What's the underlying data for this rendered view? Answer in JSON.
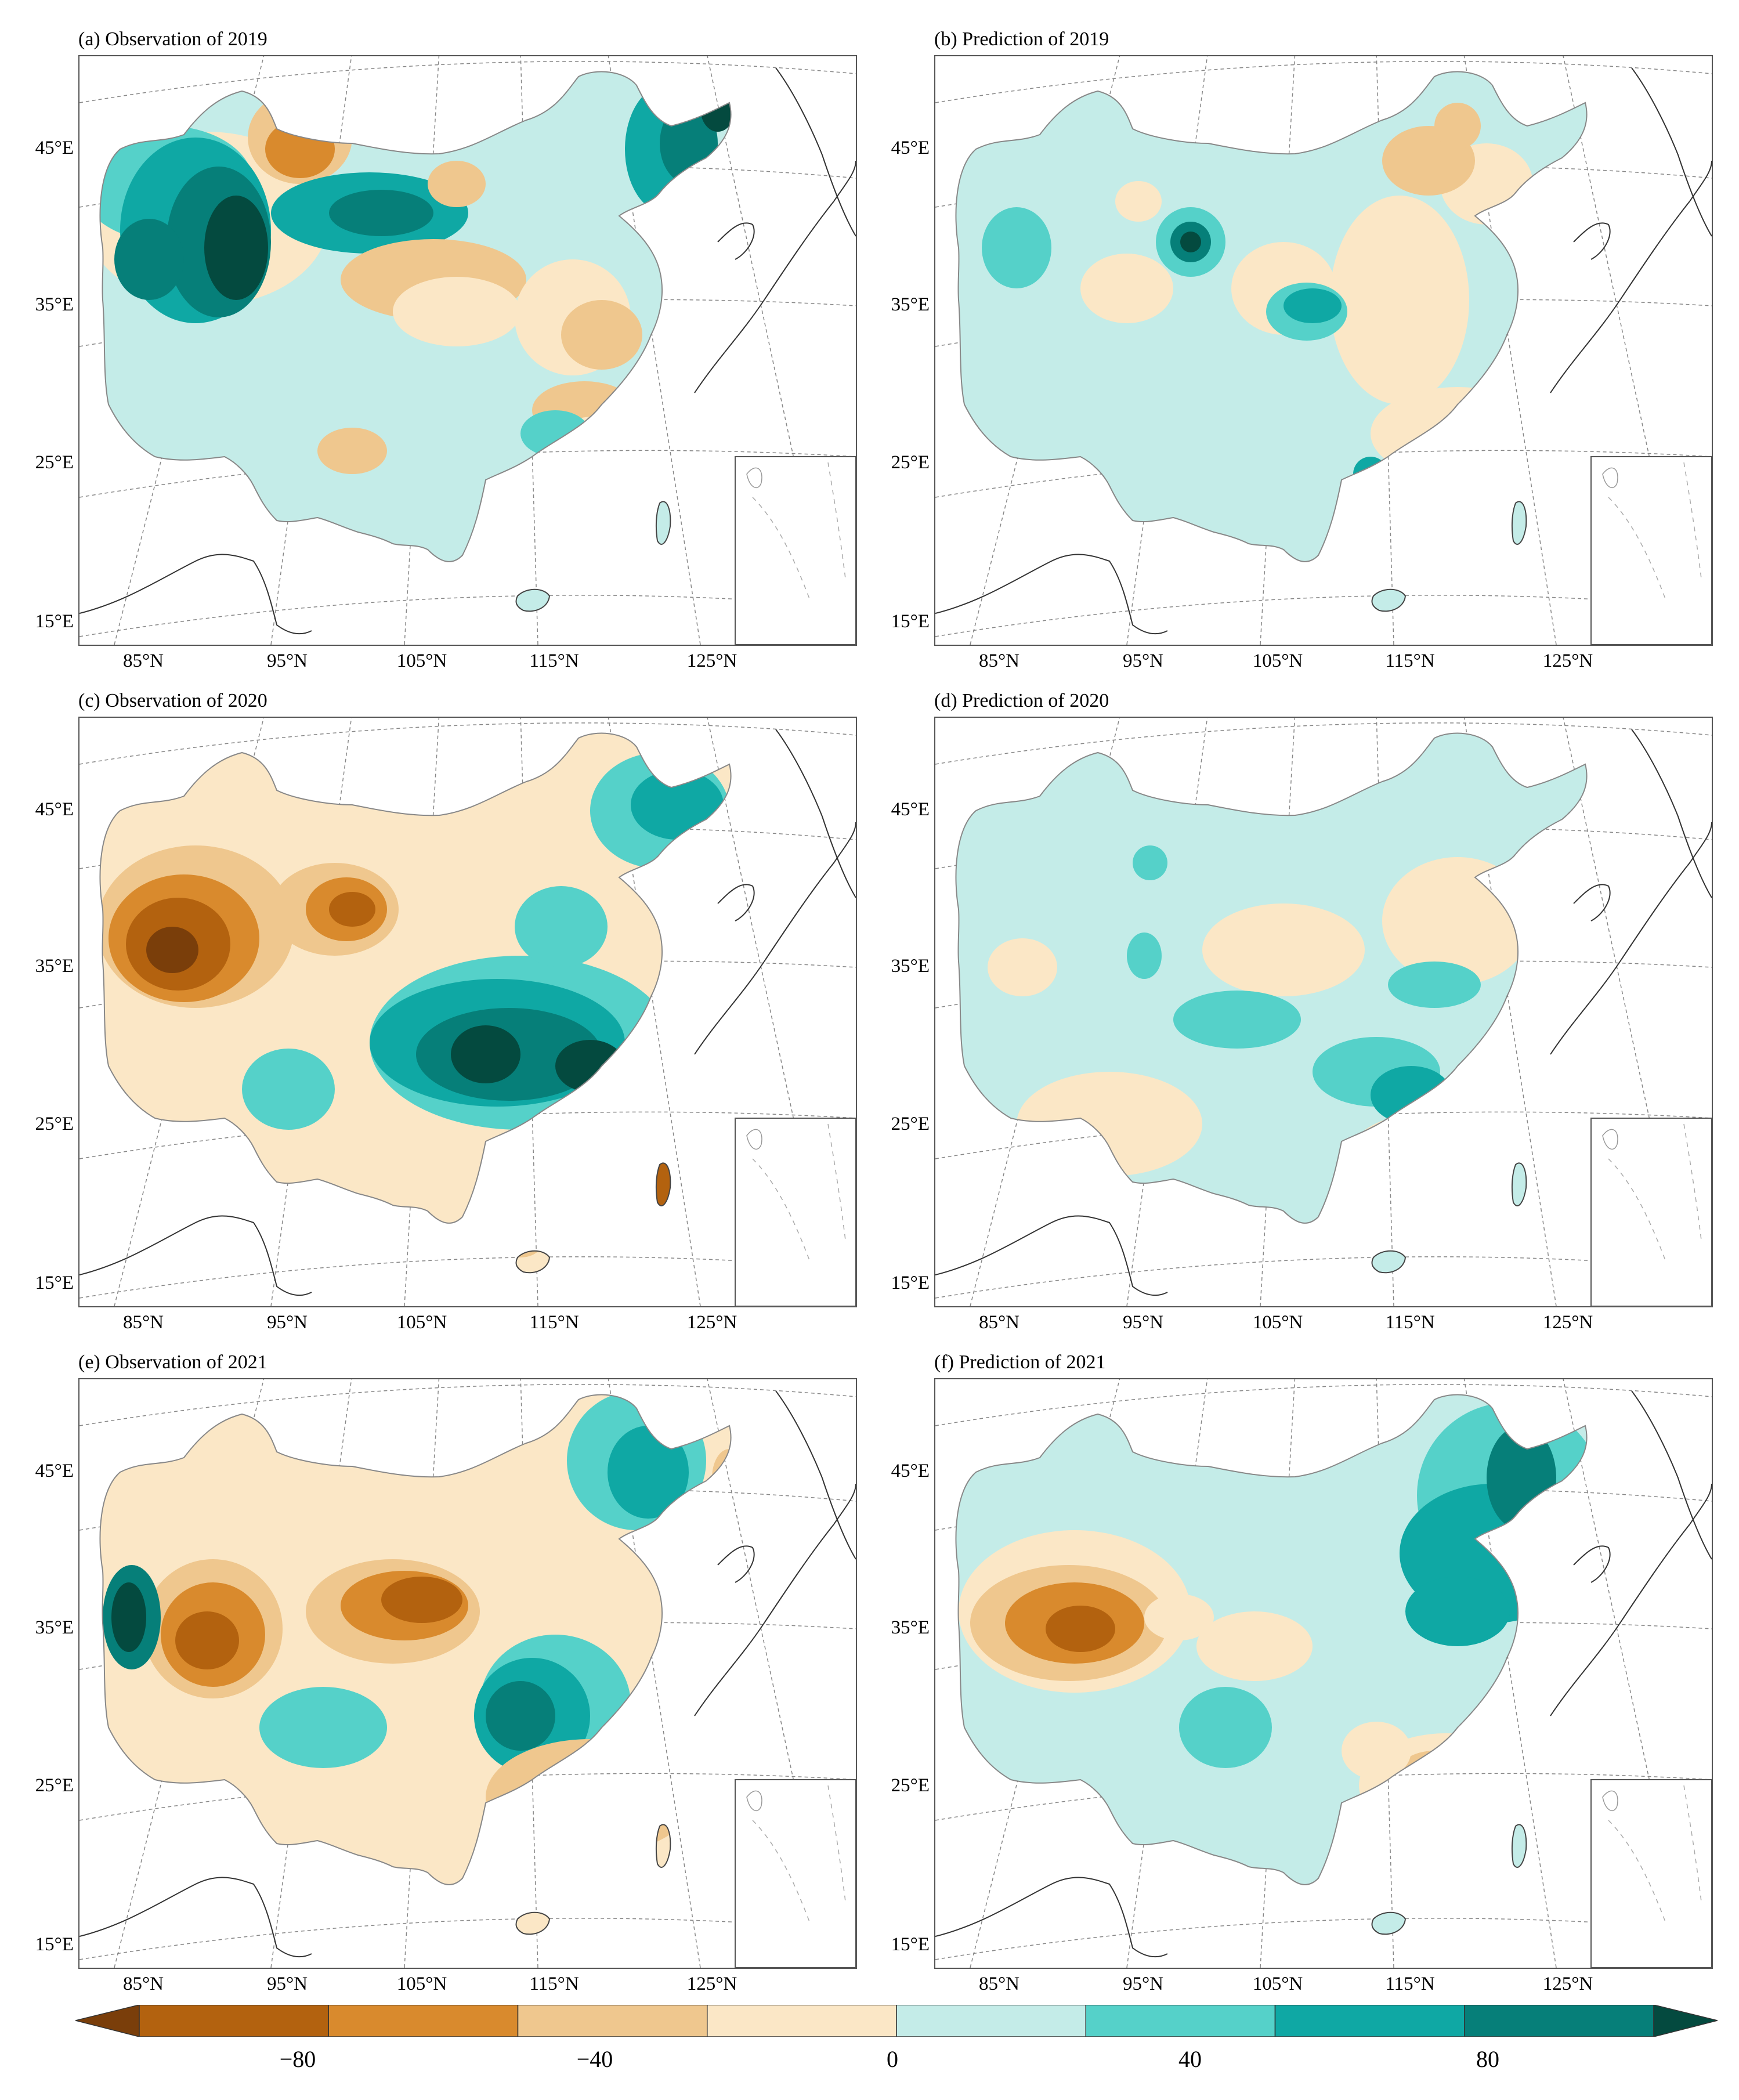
{
  "panels": [
    {
      "title": "(a) Observation of 2019"
    },
    {
      "title": "(b) Prediction of 2019"
    },
    {
      "title": "(c) Observation of 2020"
    },
    {
      "title": "(d) Prediction of 2020"
    },
    {
      "title": "(e) Observation of 2021"
    },
    {
      "title": "(f) Prediction of 2021"
    }
  ],
  "lat_labels": [
    "45°E",
    "35°E",
    "25°E",
    "15°E"
  ],
  "lon_labels": [
    "85°N",
    "95°N",
    "105°N",
    "115°N",
    "125°N"
  ],
  "colorbar": {
    "ticks": [
      "−80",
      "−40",
      "0",
      "40",
      "80"
    ],
    "colors": [
      "#7a3e0a",
      "#b3620f",
      "#d98a2d",
      "#efc78e",
      "#fbe7c6",
      "#c4ece8",
      "#55d1c9",
      "#0fa8a4",
      "#067f79",
      "#044a3f"
    ]
  },
  "map_colors": {
    "neutral_dry": "#fbe7c6",
    "neutral_wet": "#c4ece8",
    "dry_1": "#efc78e",
    "dry_2": "#d98a2d",
    "dry_3": "#b3620f",
    "dry_4": "#7a3e0a",
    "wet_1": "#55d1c9",
    "wet_2": "#0fa8a4",
    "wet_3": "#067f79",
    "wet_4": "#044a3f"
  }
}
